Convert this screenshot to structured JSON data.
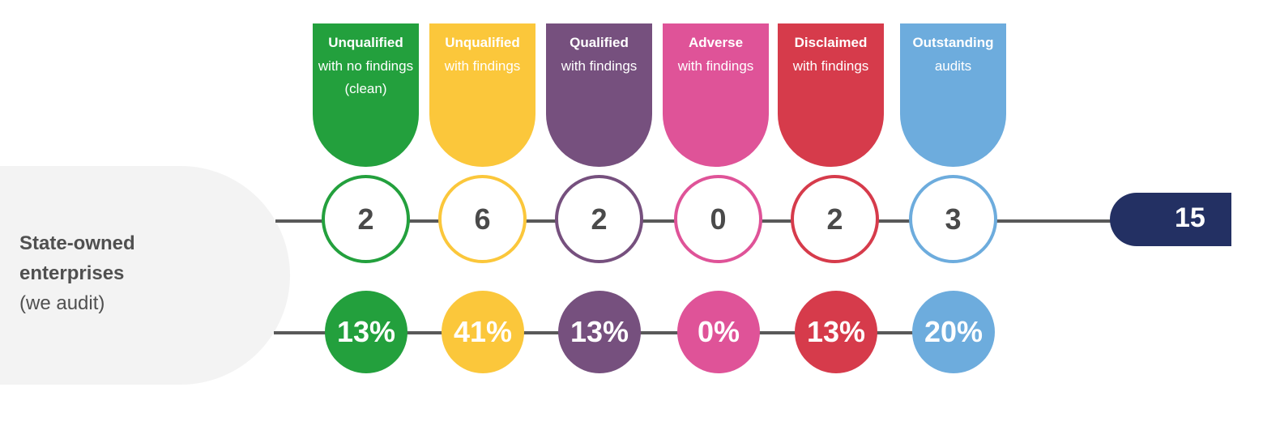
{
  "row": {
    "label_line1": "State-owned",
    "label_line2": "enterprises",
    "label_line3": "(we audit)"
  },
  "categories": [
    {
      "title": "Unqualified",
      "subtitle": "with no findings (clean)",
      "count": "2",
      "percent": "13%",
      "color": "#23a03d"
    },
    {
      "title": "Unqualified",
      "subtitle": "with findings",
      "count": "6",
      "percent": "41%",
      "color": "#fbc73b"
    },
    {
      "title": "Qualified",
      "subtitle": "with findings",
      "count": "2",
      "percent": "13%",
      "color": "#76507e"
    },
    {
      "title": "Adverse",
      "subtitle": "with findings",
      "count": "0",
      "percent": "0%",
      "color": "#df5398"
    },
    {
      "title": "Disclaimed",
      "subtitle": "with findings",
      "count": "2",
      "percent": "13%",
      "color": "#d63b4b"
    },
    {
      "title": "Outstanding",
      "subtitle": "audits",
      "count": "3",
      "percent": "20%",
      "color": "#6dacdd"
    }
  ],
  "total": "15"
}
